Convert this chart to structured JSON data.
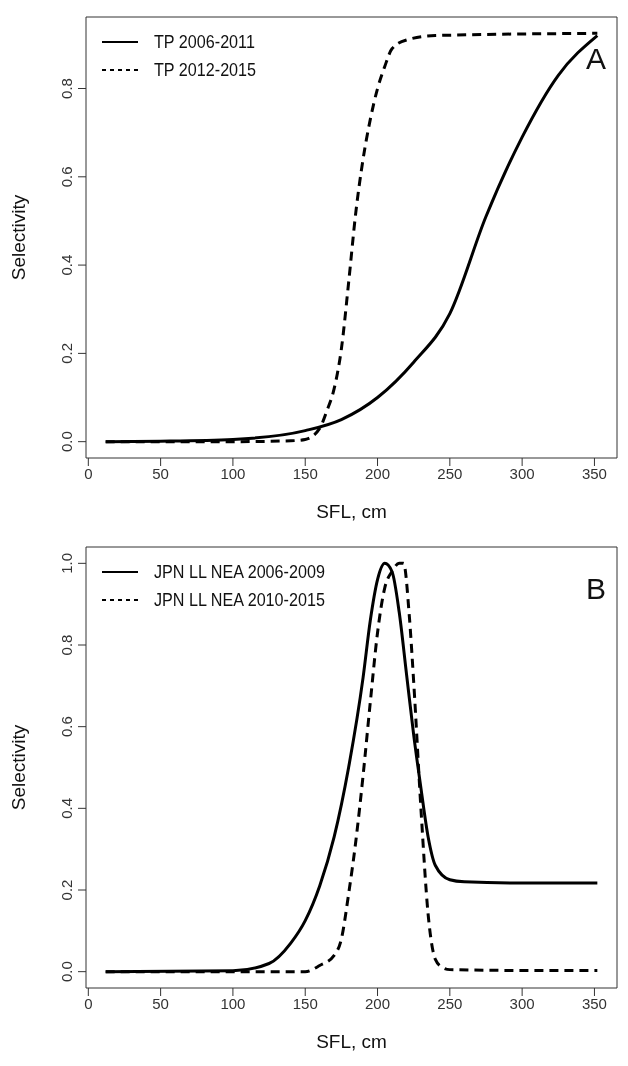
{
  "chart_data": [
    {
      "type": "line",
      "xlabel": "SFL, cm",
      "ylabel": "Selectivity",
      "annotations": [
        "A"
      ],
      "legend": "top left",
      "marker": "none",
      "xlim": [
        -1.6,
        365.6
      ],
      "xticks": [
        0,
        50,
        100,
        150,
        200,
        250,
        300,
        350
      ],
      "ylim": [
        -0.037,
        0.962
      ],
      "yticks": [
        {
          "value": 0,
          "label": "0.0"
        },
        {
          "value": 0.2,
          "label": "0.2"
        },
        {
          "value": 0.4,
          "label": "0.4"
        },
        {
          "value": 0.6,
          "label": "0.6"
        },
        {
          "value": 0.8,
          "label": "0.8"
        }
      ],
      "series": [
        {
          "name": "TP 2006-2011",
          "color": "#000000",
          "line_style": "solid",
          "x": [
            12,
            50,
            100,
            150,
            175,
            200,
            225,
            250,
            275,
            300,
            325,
            352
          ],
          "values": [
            0,
            0.001,
            0.005,
            0.025,
            0.05,
            0.1,
            0.18,
            0.29,
            0.51,
            0.69,
            0.83,
            0.92
          ]
        },
        {
          "name": "TP 2012-2015",
          "color": "#000000",
          "line_style": "dashed",
          "x": [
            12,
            100,
            140,
            150,
            160,
            165,
            170,
            175,
            180,
            185,
            190,
            195,
            200,
            205,
            210,
            220,
            240,
            352
          ],
          "values": [
            0,
            0,
            0.002,
            0.005,
            0.03,
            0.07,
            0.12,
            0.21,
            0.36,
            0.52,
            0.64,
            0.73,
            0.8,
            0.85,
            0.89,
            0.91,
            0.92,
            0.925
          ]
        }
      ]
    },
    {
      "type": "line",
      "xlabel": "SFL, cm",
      "ylabel": "Selectivity",
      "annotations": [
        "B"
      ],
      "legend": "top left",
      "marker": "none",
      "xlim": [
        -1.6,
        365.6
      ],
      "xticks": [
        0,
        50,
        100,
        150,
        200,
        250,
        300,
        350
      ],
      "ylim": [
        -0.04,
        1.04
      ],
      "yticks": [
        {
          "value": 0,
          "label": "0.0"
        },
        {
          "value": 0.2,
          "label": "0.2"
        },
        {
          "value": 0.4,
          "label": "0.4"
        },
        {
          "value": 0.6,
          "label": "0.6"
        },
        {
          "value": 0.8,
          "label": "0.8"
        },
        {
          "value": 1,
          "label": "1.0"
        }
      ],
      "series": [
        {
          "name": "JPN LL NEA 2006-2009",
          "color": "#000000",
          "line_style": "solid",
          "x": [
            12,
            100,
            125,
            140,
            150,
            160,
            170,
            180,
            190,
            195,
            200,
            205,
            210,
            215,
            220,
            225,
            230,
            235,
            240,
            250,
            260,
            300,
            352
          ],
          "values": [
            0,
            0.002,
            0.02,
            0.07,
            0.125,
            0.21,
            0.33,
            0.5,
            0.72,
            0.86,
            0.96,
            1.0,
            0.98,
            0.88,
            0.73,
            0.58,
            0.45,
            0.33,
            0.26,
            0.225,
            0.22,
            0.217,
            0.217
          ]
        },
        {
          "name": "JPN LL NEA 2010-2015",
          "color": "#000000",
          "line_style": "dashed",
          "x": [
            12,
            100,
            150,
            160,
            170,
            175,
            180,
            185,
            190,
            195,
            200,
            205,
            210,
            215,
            218,
            222,
            225,
            230,
            235,
            240,
            245,
            250,
            300,
            352
          ],
          "values": [
            0,
            0,
            0,
            0.015,
            0.04,
            0.08,
            0.19,
            0.32,
            0.48,
            0.66,
            0.83,
            0.94,
            0.98,
            1.0,
            1.0,
            0.87,
            0.71,
            0.4,
            0.14,
            0.03,
            0.01,
            0.005,
            0.003,
            0.003
          ]
        }
      ]
    }
  ]
}
